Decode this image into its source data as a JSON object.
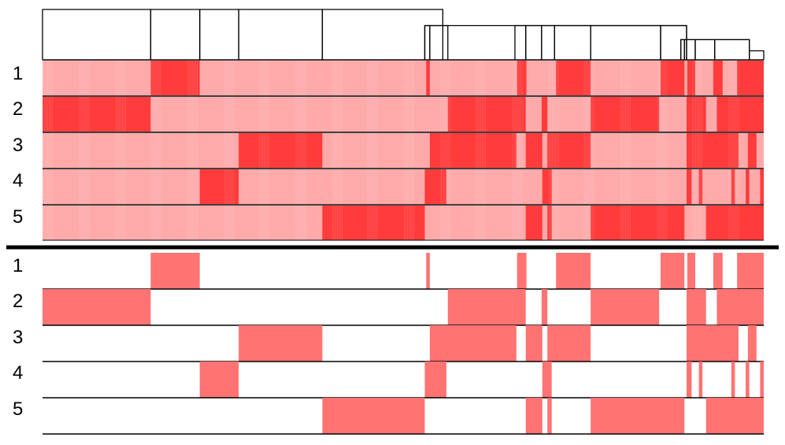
{
  "colors": {
    "strong": "#ff3b3b",
    "weak": "#ffaaaa",
    "binary": "#ff7373",
    "line": "#000000",
    "background": "#ffffff"
  },
  "axis": {
    "start": 0,
    "end": 1000
  },
  "heatmap_rows": [
    "1",
    "2",
    "3",
    "4",
    "5"
  ],
  "binary_rows": [
    "1",
    "2",
    "3",
    "4",
    "5"
  ],
  "dendrogram_links": [
    {
      "a": 0,
      "b": 150,
      "level": 1.0
    },
    {
      "a": 150,
      "b": 218,
      "level": 1.0
    },
    {
      "a": 218,
      "b": 272,
      "level": 1.0
    },
    {
      "a": 272,
      "b": 388,
      "level": 1.0
    },
    {
      "a": 388,
      "b": 555,
      "level": 1.0
    },
    {
      "a": 530,
      "b": 893,
      "level": 0.68
    },
    {
      "a": 530,
      "b": 537,
      "level": 0.68
    },
    {
      "a": 537,
      "b": 562,
      "level": 0.68
    },
    {
      "a": 655,
      "b": 670,
      "level": 0.68
    },
    {
      "a": 670,
      "b": 692,
      "level": 0.68
    },
    {
      "a": 692,
      "b": 710,
      "level": 0.68
    },
    {
      "a": 710,
      "b": 760,
      "level": 0.68
    },
    {
      "a": 760,
      "b": 857,
      "level": 0.68
    },
    {
      "a": 857,
      "b": 893,
      "level": 0.68
    },
    {
      "a": 885,
      "b": 980,
      "level": 0.4
    },
    {
      "a": 885,
      "b": 890,
      "level": 0.4
    },
    {
      "a": 890,
      "b": 905,
      "level": 0.4
    },
    {
      "a": 905,
      "b": 932,
      "level": 0.4
    },
    {
      "a": 932,
      "b": 980,
      "level": 0.4
    },
    {
      "a": 980,
      "b": 1000,
      "level": 0.18
    }
  ],
  "segments": [
    [
      [
        150,
        218
      ],
      [
        532,
        537
      ],
      [
        658,
        671
      ],
      [
        712,
        760
      ],
      [
        857,
        890
      ],
      [
        894,
        905
      ],
      [
        930,
        943
      ],
      [
        963,
        1000
      ]
    ],
    [
      [
        0,
        150
      ],
      [
        562,
        670
      ],
      [
        692,
        700
      ],
      [
        760,
        855
      ],
      [
        893,
        920
      ],
      [
        935,
        1000
      ]
    ],
    [
      [
        272,
        388
      ],
      [
        537,
        657
      ],
      [
        670,
        693
      ],
      [
        700,
        760
      ],
      [
        893,
        965
      ],
      [
        978,
        990
      ]
    ],
    [
      [
        218,
        272
      ],
      [
        530,
        560
      ],
      [
        693,
        706
      ],
      [
        893,
        900
      ],
      [
        910,
        915
      ],
      [
        955,
        960
      ],
      [
        975,
        980
      ],
      [
        995,
        1000
      ]
    ],
    [
      [
        388,
        530
      ],
      [
        670,
        693
      ],
      [
        700,
        706
      ],
      [
        760,
        890
      ],
      [
        920,
        1000
      ]
    ]
  ]
}
